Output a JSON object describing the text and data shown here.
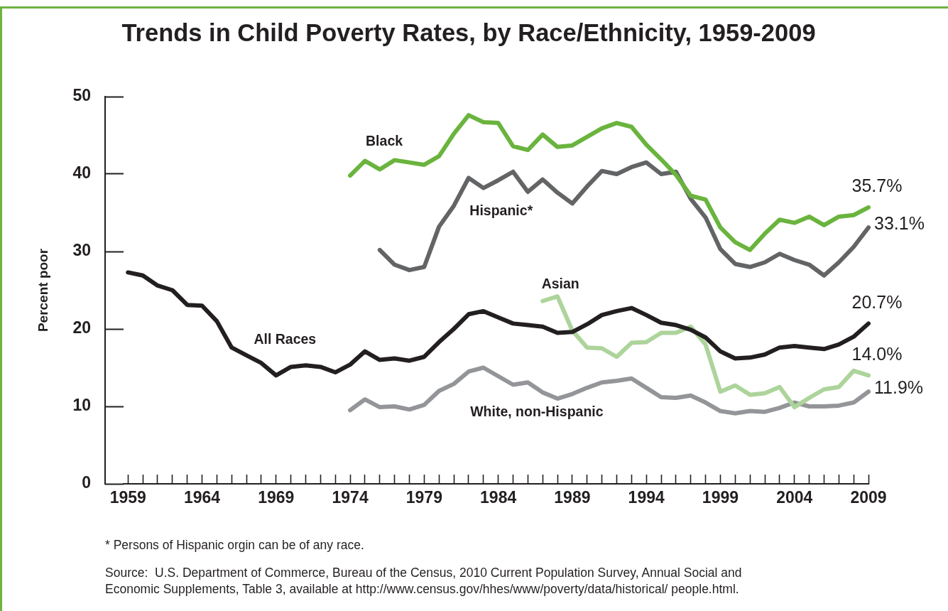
{
  "chart_data": {
    "type": "line",
    "title": "Trends in Child Poverty Rates, by Race/Ethnicity, 1959-2009",
    "ylabel": "Percent poor",
    "annotations": [
      "* Persons of Hispanic orgin can be of any race.",
      "Source:  U.S. Department of Commerce, Bureau of the Census, 2010 Current Population Survey, Annual Social and Economic Supplements, Table 3, available at http://www.census.gov/hhes/www/poverty/data/historical/ people.html."
    ],
    "x": [
      1959,
      1960,
      1961,
      1962,
      1963,
      1964,
      1965,
      1966,
      1967,
      1968,
      1969,
      1970,
      1971,
      1972,
      1973,
      1974,
      1975,
      1976,
      1977,
      1978,
      1979,
      1980,
      1981,
      1982,
      1983,
      1984,
      1985,
      1986,
      1987,
      1988,
      1989,
      1990,
      1991,
      1992,
      1993,
      1994,
      1995,
      1996,
      1997,
      1998,
      1999,
      2000,
      2001,
      2002,
      2003,
      2004,
      2005,
      2006,
      2007,
      2008,
      2009
    ],
    "series": [
      {
        "name": "All Races",
        "color": "#231f20",
        "values": [
          27.3,
          26.9,
          25.6,
          25.0,
          23.1,
          23.0,
          21.0,
          17.6,
          16.6,
          15.6,
          14.0,
          15.1,
          15.3,
          15.1,
          14.4,
          15.4,
          17.1,
          16.0,
          16.2,
          15.9,
          16.4,
          18.3,
          20.0,
          21.9,
          22.3,
          21.5,
          20.7,
          20.5,
          20.3,
          19.5,
          19.6,
          20.6,
          21.8,
          22.3,
          22.7,
          21.8,
          20.8,
          20.5,
          19.9,
          18.9,
          17.1,
          16.2,
          16.3,
          16.7,
          17.6,
          17.8,
          17.6,
          17.4,
          18.0,
          19.0,
          20.7
        ],
        "value_labels": [
          null,
          null,
          null,
          null,
          null,
          null,
          null,
          null,
          null,
          null,
          null,
          null,
          null,
          null,
          null,
          null,
          null,
          null,
          null,
          null,
          null,
          null,
          null,
          null,
          null,
          null,
          null,
          null,
          null,
          null,
          null,
          null,
          null,
          null,
          null,
          null,
          null,
          null,
          null,
          null,
          null,
          null,
          null,
          null,
          null,
          null,
          null,
          null,
          null,
          null,
          "20.7%"
        ]
      },
      {
        "name": "Black",
        "color": "#6ab43e",
        "x": [
          1974,
          1975,
          1976,
          1977,
          1978,
          1979,
          1980,
          1981,
          1982,
          1983,
          1984,
          1985,
          1986,
          1987,
          1988,
          1989,
          1990,
          1991,
          1992,
          1993,
          1994,
          1995,
          1996,
          1997,
          1998,
          1999,
          2000,
          2001,
          2002,
          2003,
          2004,
          2005,
          2006,
          2007,
          2008,
          2009
        ],
        "values": [
          39.8,
          41.7,
          40.6,
          41.8,
          41.5,
          41.2,
          42.3,
          45.2,
          47.6,
          46.7,
          46.6,
          43.6,
          43.1,
          45.1,
          43.5,
          43.7,
          44.8,
          45.9,
          46.6,
          46.1,
          43.8,
          41.9,
          39.9,
          37.2,
          36.7,
          33.1,
          31.2,
          30.2,
          32.3,
          34.1,
          33.7,
          34.5,
          33.4,
          34.5,
          34.7,
          35.7
        ],
        "value_labels": [
          null,
          null,
          null,
          null,
          null,
          null,
          null,
          null,
          null,
          null,
          null,
          null,
          null,
          null,
          null,
          null,
          null,
          null,
          null,
          null,
          null,
          null,
          null,
          null,
          null,
          null,
          null,
          null,
          null,
          null,
          null,
          null,
          null,
          null,
          null,
          "35.7%"
        ]
      },
      {
        "name": "Hispanic*",
        "color": "#636466",
        "x": [
          1976,
          1977,
          1978,
          1979,
          1980,
          1981,
          1982,
          1983,
          1984,
          1985,
          1986,
          1987,
          1988,
          1989,
          1990,
          1991,
          1992,
          1993,
          1994,
          1995,
          1996,
          1997,
          1998,
          1999,
          2000,
          2001,
          2002,
          2003,
          2004,
          2005,
          2006,
          2007,
          2008,
          2009
        ],
        "values": [
          30.2,
          28.3,
          27.6,
          28.0,
          33.2,
          35.9,
          39.5,
          38.2,
          39.2,
          40.3,
          37.7,
          39.3,
          37.6,
          36.2,
          38.4,
          40.4,
          40.0,
          40.9,
          41.5,
          40.0,
          40.3,
          36.8,
          34.4,
          30.3,
          28.4,
          28.0,
          28.6,
          29.7,
          28.9,
          28.3,
          26.9,
          28.6,
          30.6,
          33.1
        ],
        "value_labels": [
          null,
          null,
          null,
          null,
          null,
          null,
          null,
          null,
          null,
          null,
          null,
          null,
          null,
          null,
          null,
          null,
          null,
          null,
          null,
          null,
          null,
          null,
          null,
          null,
          null,
          null,
          null,
          null,
          null,
          null,
          null,
          null,
          null,
          "33.1%"
        ]
      },
      {
        "name": "Asian",
        "color": "#add49b",
        "x": [
          1987,
          1988,
          1989,
          1990,
          1991,
          1992,
          1993,
          1994,
          1995,
          1996,
          1997,
          1998,
          1999,
          2000,
          2001,
          2002,
          2003,
          2004,
          2005,
          2006,
          2007,
          2008,
          2009
        ],
        "values": [
          23.6,
          24.2,
          19.8,
          17.6,
          17.5,
          16.4,
          18.2,
          18.3,
          19.5,
          19.5,
          20.3,
          18.0,
          11.9,
          12.7,
          11.5,
          11.7,
          12.5,
          9.9,
          11.1,
          12.2,
          12.5,
          14.6,
          14.0
        ],
        "value_labels": [
          null,
          null,
          null,
          null,
          null,
          null,
          null,
          null,
          null,
          null,
          null,
          null,
          null,
          null,
          null,
          null,
          null,
          null,
          null,
          null,
          null,
          null,
          "14.0%"
        ]
      },
      {
        "name": "White, non-Hispanic",
        "color": "#939598",
        "x": [
          1974,
          1975,
          1976,
          1977,
          1978,
          1979,
          1980,
          1981,
          1982,
          1983,
          1984,
          1985,
          1986,
          1987,
          1988,
          1989,
          1990,
          1991,
          1992,
          1993,
          1994,
          1995,
          1996,
          1997,
          1998,
          1999,
          2000,
          2001,
          2002,
          2003,
          2004,
          2005,
          2006,
          2007,
          2008,
          2009
        ],
        "values": [
          9.5,
          10.9,
          9.9,
          10.0,
          9.6,
          10.2,
          12.0,
          12.9,
          14.5,
          15.0,
          13.9,
          12.8,
          13.1,
          11.8,
          11.0,
          11.6,
          12.4,
          13.1,
          13.3,
          13.6,
          12.4,
          11.2,
          11.1,
          11.4,
          10.5,
          9.4,
          9.1,
          9.4,
          9.3,
          9.8,
          10.5,
          10.0,
          10.0,
          10.1,
          10.5,
          11.9
        ],
        "value_labels": [
          null,
          null,
          null,
          null,
          null,
          null,
          null,
          null,
          null,
          null,
          null,
          null,
          null,
          null,
          null,
          null,
          null,
          null,
          null,
          null,
          null,
          null,
          null,
          null,
          null,
          null,
          null,
          null,
          null,
          null,
          null,
          null,
          null,
          null,
          null,
          "11.9%"
        ]
      }
    ],
    "xlim": [
      1958.7,
      2009
    ],
    "xticks": [
      1959,
      {
        "value": 1960,
        "label": null
      },
      {
        "value": 1961,
        "label": null
      },
      {
        "value": 1962,
        "label": null
      },
      {
        "value": 1963,
        "label": null
      },
      1964,
      {
        "value": 1965,
        "label": null
      },
      {
        "value": 1966,
        "label": null
      },
      {
        "value": 1967,
        "label": null
      },
      {
        "value": 1968,
        "label": null
      },
      1969,
      {
        "value": 1970,
        "label": null
      },
      {
        "value": 1971,
        "label": null
      },
      {
        "value": 1972,
        "label": null
      },
      {
        "value": 1973,
        "label": null
      },
      1974,
      {
        "value": 1975,
        "label": null
      },
      {
        "value": 1976,
        "label": null
      },
      {
        "value": 1977,
        "label": null
      },
      {
        "value": 1978,
        "label": null
      },
      1979,
      {
        "value": 1980,
        "label": null
      },
      {
        "value": 1981,
        "label": null
      },
      {
        "value": 1982,
        "label": null
      },
      {
        "value": 1983,
        "label": null
      },
      1984,
      {
        "value": 1985,
        "label": null
      },
      {
        "value": 1986,
        "label": null
      },
      {
        "value": 1987,
        "label": null
      },
      {
        "value": 1988,
        "label": null
      },
      1989,
      {
        "value": 1990,
        "label": null
      },
      {
        "value": 1991,
        "label": null
      },
      {
        "value": 1992,
        "label": null
      },
      {
        "value": 1993,
        "label": null
      },
      1994,
      {
        "value": 1995,
        "label": null
      },
      {
        "value": 1996,
        "label": null
      },
      {
        "value": 1997,
        "label": null
      },
      {
        "value": 1998,
        "label": null
      },
      1999,
      {
        "value": 2000,
        "label": null
      },
      {
        "value": 2001,
        "label": null
      },
      {
        "value": 2002,
        "label": null
      },
      {
        "value": 2003,
        "label": null
      },
      2004,
      {
        "value": 2005,
        "label": null
      },
      {
        "value": 2006,
        "label": null
      },
      {
        "value": 2007,
        "label": null
      },
      {
        "value": 2008,
        "label": null
      },
      2009
    ],
    "ylim": [
      0,
      50
    ],
    "yticks": [
      0,
      10,
      20,
      30,
      40,
      50
    ],
    "marker": "none",
    "line_style": "solid"
  }
}
